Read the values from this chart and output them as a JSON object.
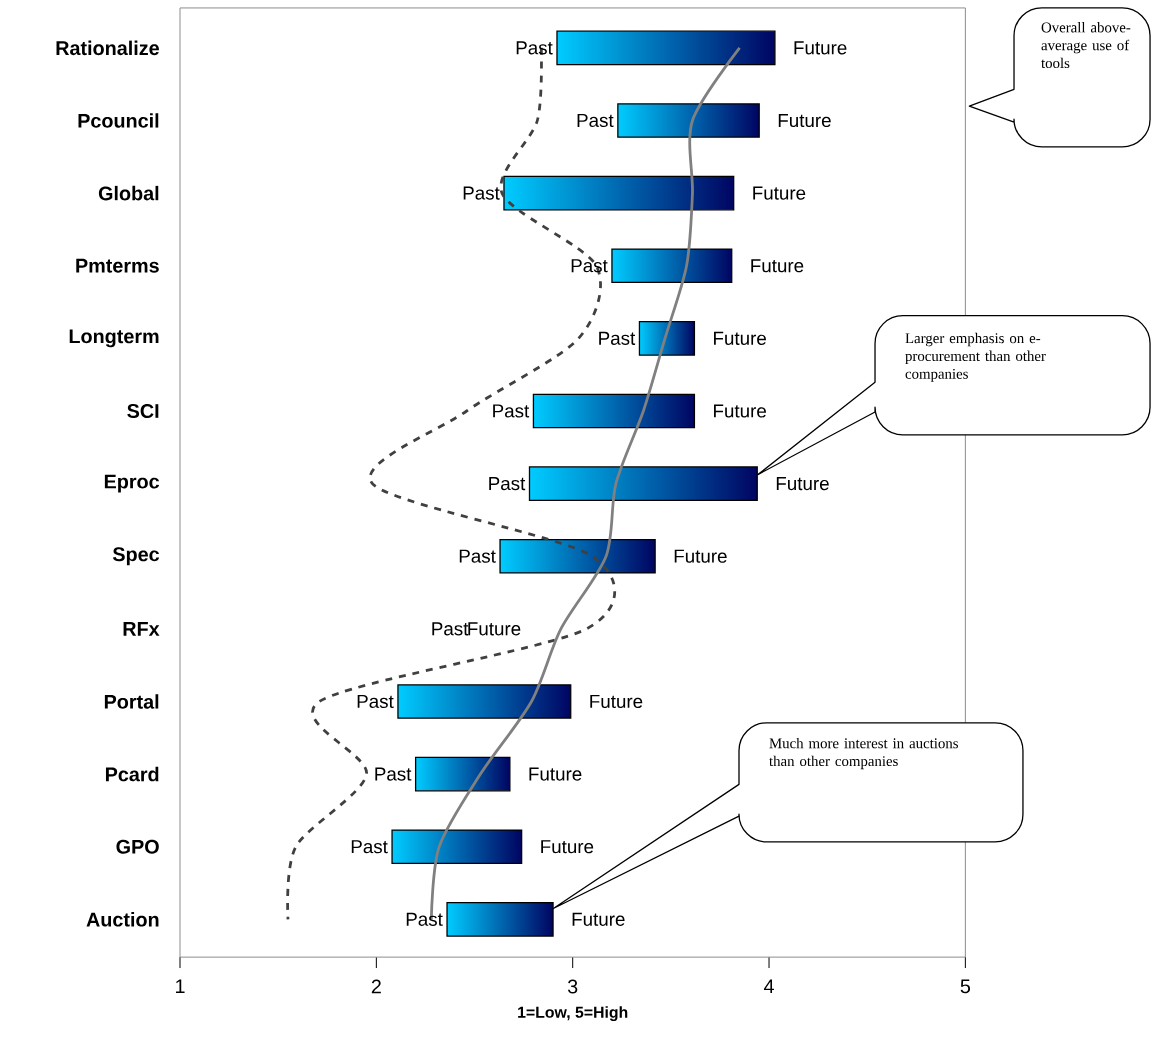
{
  "chart_data": {
    "type": "bar",
    "orientation": "horizontal",
    "xlabel": "1=Low, 5=High",
    "categories": [
      "Rationalize",
      "Pcouncil",
      "Global",
      "Pmterms",
      "Longterm",
      "SCI",
      "Eproc",
      "Spec",
      "RFx",
      "Portal",
      "Pcard",
      "GPO",
      "Auction"
    ],
    "xlim": [
      1,
      5
    ],
    "xticks": [
      1,
      2,
      3,
      4,
      5
    ],
    "series": [
      {
        "type": "line",
        "line_style": "dashed",
        "color": "#404040",
        "values": [
          2.84,
          2.82,
          2.64,
          3.12,
          3.03,
          2.46,
          1.98,
          3.1,
          3.07,
          1.71,
          1.95,
          1.59,
          1.55
        ]
      },
      {
        "type": "line",
        "line_style": "solid",
        "color": "#808080",
        "values": [
          3.85,
          3.61,
          3.61,
          3.58,
          3.47,
          3.36,
          3.22,
          3.17,
          2.94,
          2.79,
          2.53,
          2.32,
          2.28
        ]
      },
      {
        "color": "#00ccff",
        "base": [
          2.92,
          3.23,
          2.65,
          3.2,
          3.34,
          2.8,
          2.78,
          2.63,
          null,
          2.11,
          2.2,
          2.08,
          2.36
        ],
        "values": [
          1.11,
          0.72,
          1.17,
          0.61,
          0.28,
          0.82,
          1.16,
          0.79,
          null,
          0.88,
          0.48,
          0.66,
          0.54
        ]
      }
    ],
    "annotations": [
      "Overall above-average use of tools",
      "Larger emphasis on e-procurement than other companies",
      "Much more interest in auctions than other companies",
      {
        "text": "Past",
        "x": 2.92,
        "y": "Rationalize"
      },
      {
        "text": "Future",
        "x": 4.03,
        "y": "Rationalize"
      },
      {
        "text": "Past",
        "x": 3.23,
        "y": "Pcouncil"
      },
      {
        "text": "Future",
        "x": 3.95,
        "y": "Pcouncil"
      },
      {
        "text": "Past",
        "x": 2.65,
        "y": "Global"
      },
      {
        "text": "Future",
        "x": 3.82,
        "y": "Global"
      },
      {
        "text": "Past",
        "x": 3.2,
        "y": "Pmterms"
      },
      {
        "text": "Future",
        "x": 3.81,
        "y": "Pmterms"
      },
      {
        "text": "Past",
        "x": 3.34,
        "y": "Longterm"
      },
      {
        "text": "Future",
        "x": 3.62,
        "y": "Longterm"
      },
      {
        "text": "Past",
        "x": 2.8,
        "y": "SCI"
      },
      {
        "text": "Future",
        "x": 3.62,
        "y": "SCI"
      },
      {
        "text": "Past",
        "x": 2.78,
        "y": "Eproc"
      },
      {
        "text": "Future",
        "x": 3.94,
        "y": "Eproc"
      },
      {
        "text": "Past",
        "x": 2.63,
        "y": "Spec"
      },
      {
        "text": "Future",
        "x": 3.42,
        "y": "Spec"
      },
      "Past",
      "Future",
      {
        "text": "Past",
        "x": 2.11,
        "y": "Portal"
      },
      {
        "text": "Future",
        "x": 2.99,
        "y": "Portal"
      },
      {
        "text": "Past",
        "x": 2.2,
        "y": "Pcard"
      },
      {
        "text": "Future",
        "x": 2.68,
        "y": "Pcard"
      },
      {
        "text": "Past",
        "x": 2.08,
        "y": "GPO"
      },
      {
        "text": "Future",
        "x": 2.74,
        "y": "GPO"
      },
      {
        "text": "Past",
        "x": 2.36,
        "y": "Auction"
      },
      {
        "text": "Future",
        "x": 2.9,
        "y": "Auction"
      }
    ]
  }
}
